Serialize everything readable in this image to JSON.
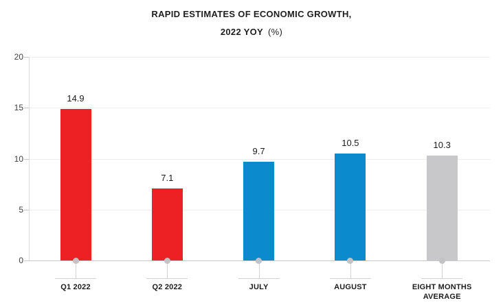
{
  "title": {
    "line1": "RAPID ESTIMATES OF ECONOMIC GROWTH,",
    "line2_main": "2022 YOY",
    "line2_unit": "(%)"
  },
  "chart_data": {
    "type": "bar",
    "title": "RAPID ESTIMATES OF ECONOMIC GROWTH, 2022 YOY (%)",
    "categories": [
      "Q1 2022",
      "Q2 2022",
      "JULY",
      "AUGUST",
      "EIGHT MONTHS AVERAGE"
    ],
    "values": [
      14.9,
      7.1,
      9.7,
      10.5,
      10.3
    ],
    "value_labels": [
      "14.9",
      "7.1",
      "9.7",
      "10.5",
      "10.3"
    ],
    "bar_colors": [
      "#ed2024",
      "#ed2024",
      "#0b8bce",
      "#0b8bce",
      "#c8c8ca"
    ],
    "xlabel": "",
    "ylabel": "",
    "ylim": [
      0,
      20
    ],
    "yticks": [
      0,
      5,
      10,
      15,
      20
    ],
    "grid": "horizontal gridlines at each y tick",
    "legend": "none"
  },
  "colors": {
    "red_bar": "#ed2024",
    "blue_bar": "#0b8bce",
    "gray_bar": "#c8c8ca",
    "zero_line": "#c8c8c8",
    "gridline": "#ededed",
    "marker": "#c3c3c5",
    "text_dark": "#1a1a1a",
    "axis_text": "#404040"
  }
}
